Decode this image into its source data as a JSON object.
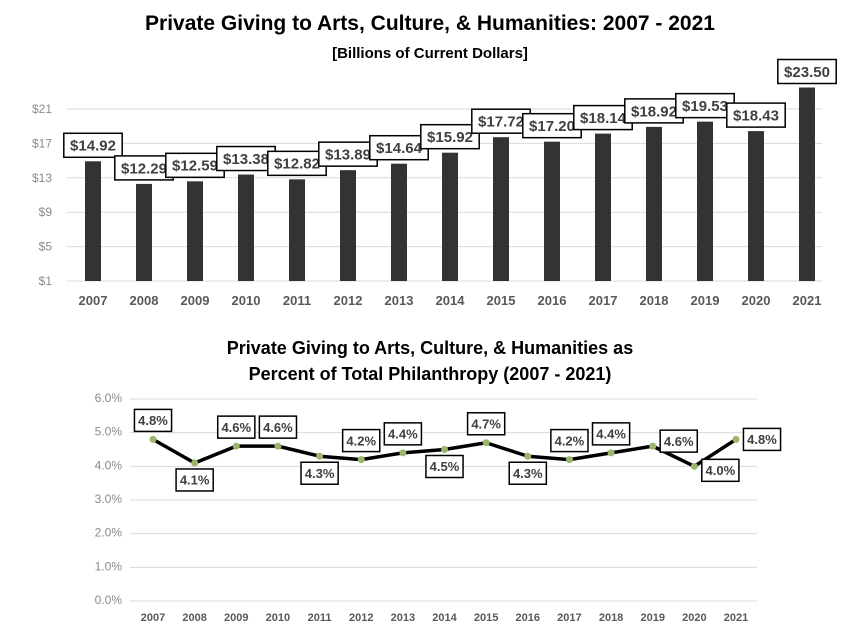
{
  "chart_data": [
    {
      "type": "bar",
      "title": "Private Giving to Arts, Culture, & Humanities: 2007 - 2021",
      "subtitle": "[Billions of Current Dollars]",
      "categories": [
        "2007",
        "2008",
        "2009",
        "2010",
        "2011",
        "2012",
        "2013",
        "2014",
        "2015",
        "2016",
        "2017",
        "2018",
        "2019",
        "2020",
        "2021"
      ],
      "values": [
        14.92,
        12.29,
        12.59,
        13.38,
        12.82,
        13.89,
        14.64,
        15.92,
        17.72,
        17.2,
        18.14,
        18.92,
        19.53,
        18.43,
        23.5
      ],
      "data_labels": [
        "$14.92",
        "$12.29",
        "$12.59",
        "$13.38",
        "$12.82",
        "$13.89",
        "$14.64",
        "$15.92",
        "$17.72",
        "$17.20",
        "$18.14",
        "$18.92",
        "$19.53",
        "$18.43",
        "$23.50"
      ],
      "yticks": [
        "$1",
        "$5",
        "$9",
        "$13",
        "$17",
        "$21"
      ],
      "ylim": [
        1,
        21
      ],
      "grid": true,
      "bar_color": "#333333"
    },
    {
      "type": "line",
      "title": "Private Giving to Arts, Culture, & Humanities as",
      "subtitle": "Percent of Total Philanthropy (2007 - 2021)",
      "categories": [
        "2007",
        "2008",
        "2009",
        "2010",
        "2011",
        "2012",
        "2013",
        "2014",
        "2015",
        "2016",
        "2017",
        "2018",
        "2019",
        "2020",
        "2021"
      ],
      "values": [
        4.8,
        4.1,
        4.6,
        4.6,
        4.3,
        4.2,
        4.4,
        4.5,
        4.7,
        4.3,
        4.2,
        4.4,
        4.6,
        4.0,
        4.8
      ],
      "data_labels": [
        "4.8%",
        "4.1%",
        "4.6%",
        "4.6%",
        "4.3%",
        "4.2%",
        "4.4%",
        "4.5%",
        "4.7%",
        "4.3%",
        "4.2%",
        "4.4%",
        "4.6%",
        "4.0%",
        "4.8%"
      ],
      "yticks": [
        "0.0%",
        "1.0%",
        "2.0%",
        "3.0%",
        "4.0%",
        "5.0%",
        "6.0%"
      ],
      "ylim": [
        0,
        6
      ],
      "grid": true,
      "line_color": "#000000",
      "marker_color": "#9bb56b"
    }
  ]
}
